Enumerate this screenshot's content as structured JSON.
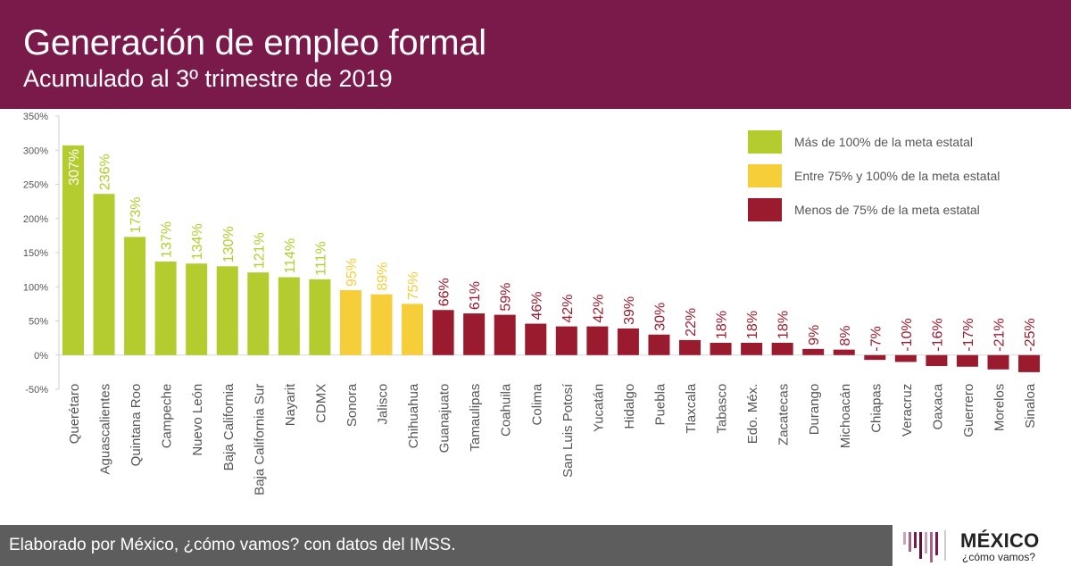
{
  "header": {
    "title": "Generación de empleo formal",
    "subtitle": "Acumulado al 3º trimestre de 2019"
  },
  "footer": {
    "credit": "Elaborado por México, ¿cómo vamos? con datos del IMSS."
  },
  "logo": {
    "name": "MÉXICO",
    "tagline": "¿cómo vamos?",
    "bar_colors": [
      "#c7a3b8",
      "#a5638a",
      "#7a1a4b",
      "#5c1238"
    ]
  },
  "colors": {
    "high": "#b5cc2e",
    "mid": "#f5ce3a",
    "low": "#9b1b2e",
    "header": "#7a1a4b",
    "footer": "#5d5d5d"
  },
  "chart_data": {
    "type": "bar",
    "title": "Generación de empleo formal",
    "subtitle": "Acumulado al 3º trimestre de 2019",
    "ylim": [
      -50,
      350
    ],
    "yticks": [
      350,
      300,
      250,
      200,
      150,
      100,
      50,
      0,
      -50
    ],
    "ytick_labels": [
      "350%",
      "300%",
      "250%",
      "200%",
      "150%",
      "100%",
      "50%",
      "0%",
      "-50%"
    ],
    "legend_position": "top-right",
    "legend": [
      {
        "key": "high",
        "label": "Más de 100% de la meta estatal"
      },
      {
        "key": "mid",
        "label": "Entre 75% y 100% de la meta estatal"
      },
      {
        "key": "low",
        "label": "Menos de 75% de la meta estatal"
      }
    ],
    "categories": [
      "Querétaro",
      "Aguascalientes",
      "Quintana Roo",
      "Campeche",
      "Nuevo León",
      "Baja California",
      "Baja California Sur",
      "Nayarit",
      "CDMX",
      "Sonora",
      "Jalisco",
      "Chihuahua",
      "Guanajuato",
      "Tamaulipas",
      "Coahuila",
      "Colima",
      "San Luis Potosí",
      "Yucatán",
      "Hidalgo",
      "Puebla",
      "Tlaxcala",
      "Tabasco",
      "Edo. Méx.",
      "Zacatecas",
      "Durango",
      "Michoacán",
      "Chiapas",
      "Veracruz",
      "Oaxaca",
      "Guerrero",
      "Morelos",
      "Sinaloa"
    ],
    "values": [
      307,
      236,
      173,
      137,
      134,
      130,
      121,
      114,
      111,
      95,
      89,
      75,
      66,
      61,
      59,
      46,
      42,
      42,
      39,
      30,
      22,
      18,
      18,
      18,
      9,
      8,
      -7,
      -10,
      -16,
      -17,
      -21,
      -25
    ],
    "value_labels": [
      "307%",
      "236%",
      "173%",
      "137%",
      "134%",
      "130%",
      "121%",
      "114%",
      "111%",
      "95%",
      "89%",
      "75%",
      "66%",
      "61%",
      "59%",
      "46%",
      "42%",
      "42%",
      "39%",
      "30%",
      "22%",
      "18%",
      "18%",
      "18%",
      "9%",
      "8%",
      "-7%",
      "-10%",
      "-16%",
      "-17%",
      "-21%",
      "-25%"
    ],
    "groups": [
      "high",
      "high",
      "high",
      "high",
      "high",
      "high",
      "high",
      "high",
      "high",
      "mid",
      "mid",
      "mid",
      "low",
      "low",
      "low",
      "low",
      "low",
      "low",
      "low",
      "low",
      "low",
      "low",
      "low",
      "low",
      "low",
      "low",
      "low",
      "low",
      "low",
      "low",
      "low",
      "low"
    ]
  }
}
